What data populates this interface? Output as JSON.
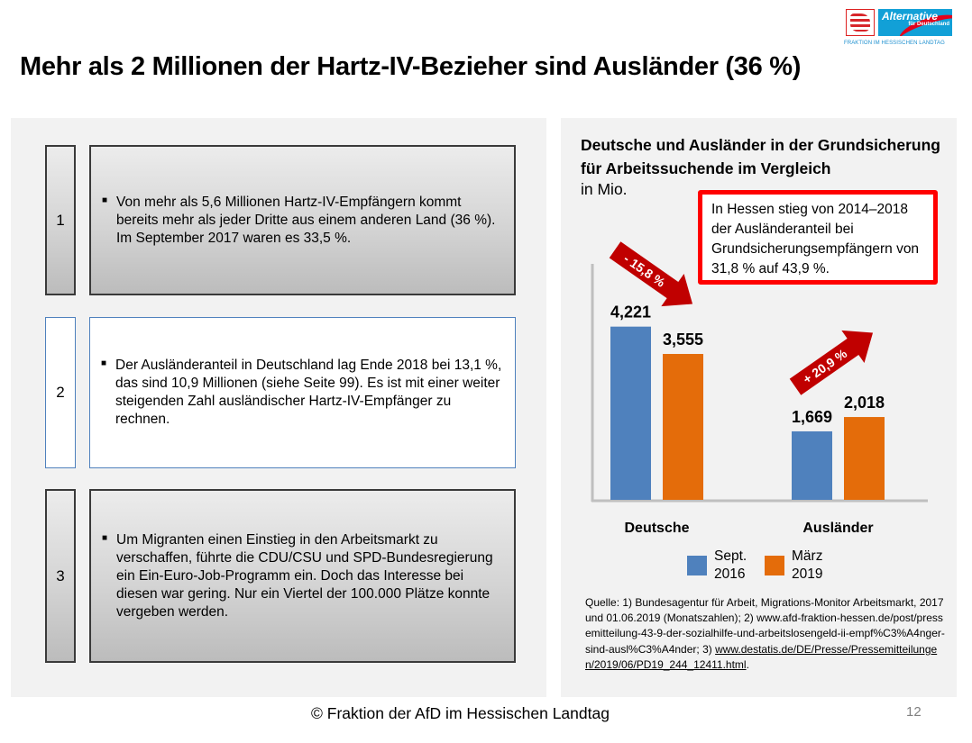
{
  "logo": {
    "name": "Alternative",
    "sub": "für Deutschland",
    "tagline": "FRAKTION IM HESSISCHEN LANDTAG"
  },
  "title": "Mehr als 2 Millionen der Hartz-IV-Bezieher sind Ausländer (36 %)",
  "points": [
    {
      "number": "1",
      "style": "gray",
      "text": "Von mehr als 5,6 Millionen Hartz-IV-Empfängern kommt bereits mehr als jeder Dritte aus einem anderen Land (36 %). Im September 2017 waren es 33,5 %."
    },
    {
      "number": "2",
      "style": "white",
      "text": "Der Ausländeranteil in Deutschland lag Ende 2018 bei 13,1 %, das sind 10,9 Millionen (siehe Seite 99). Es ist mit einer weiter steigenden Zahl ausländischer Hartz-IV-Empfänger zu rechnen."
    },
    {
      "number": "3",
      "style": "gray",
      "text": "Um Migranten einen Einstieg in den Arbeitsmarkt zu verschaffen, führte die CDU/CSU und SPD-Bundesregierung ein Ein-Euro-Job-Programm ein. Doch das Interesse bei diesen war gering. Nur ein Viertel der 100.000 Plätze konnte vergeben werden."
    }
  ],
  "callout": "In Hessen stieg von 2014–2018 der Ausländeranteil bei Grundsicherungsempfängern von 31,8 % auf 43,9 %.",
  "chart_data": {
    "type": "bar",
    "title": "Deutsche und Ausländer in der Grundsicherung für Arbeitssuchende im Vergleich",
    "unit_label": "in Mio.",
    "categories": [
      "Deutsche",
      "Ausländer"
    ],
    "series": [
      {
        "name": "Sept. 2016",
        "color": "#4f81bd",
        "values": [
          4.221,
          1.669
        ],
        "labels": [
          "4,221",
          "1,669"
        ]
      },
      {
        "name": "März 2019",
        "color": "#e46c0a",
        "values": [
          3.555,
          2.018
        ],
        "labels": [
          "3,555",
          "2,018"
        ]
      }
    ],
    "annotations": [
      {
        "text": "- 15,8 %",
        "category": "Deutsche",
        "direction": "down",
        "color": "#c00000"
      },
      {
        "text": "+ 20,9 %",
        "category": "Ausländer",
        "direction": "up",
        "color": "#c00000"
      }
    ],
    "ylim": [
      0,
      5.75
    ],
    "grid": false,
    "legend": "bottom",
    "legend_entries": [
      {
        "line1": "Sept.",
        "line2": "2016"
      },
      {
        "line1": "März",
        "line2": "2019"
      }
    ]
  },
  "source": {
    "text": "Quelle: 1) Bundesagentur für Arbeit, Migrations-Monitor Arbeitsmarkt, 2017 und 01.06.2019 (Monatszahlen); 2) www.afd-fraktion-hessen.de/post/pressemitteilung-43-9-der-sozialhilfe-und-arbeitslosengeld-ii-empf%C3%A4nger-sind-ausl%C3%A4nder; 3) ",
    "link": "www.destatis.de/DE/Presse/Pressemitteilungen/2019/06/PD19_244_12411.html",
    "end": "."
  },
  "footer": "© Fraktion der AfD im Hessischen Landtag",
  "page_number": "12"
}
